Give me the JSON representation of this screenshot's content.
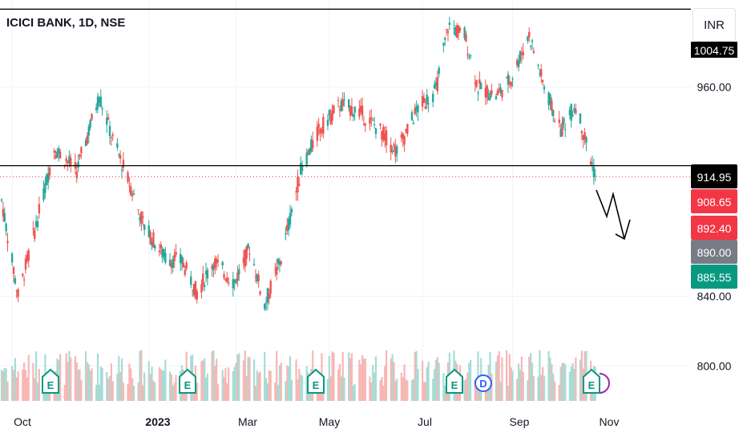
{
  "header": {
    "title": "ICICI BANK, 1D, NSE",
    "currency": "INR"
  },
  "chart_data": {
    "type": "candlestick",
    "ylim": [
      780,
      1010
    ],
    "y_ticks": [
      "1004.75",
      "960.00",
      "914.95",
      "840.00",
      "800.00"
    ],
    "x_ticks": [
      "Oct",
      "2023",
      "Mar",
      "May",
      "Jul",
      "Sep",
      "Nov"
    ],
    "price_labels": [
      {
        "text": "1004.75",
        "kind": "resistance",
        "color": "#000000"
      },
      {
        "text": "914.95",
        "kind": "support",
        "color": "#000000"
      },
      {
        "text": "908.65",
        "kind": "last",
        "color": "#f23645"
      },
      {
        "text": "892.40",
        "kind": "low",
        "color": "#f23645"
      },
      {
        "text": "890.00",
        "kind": "target",
        "color": "#787b86"
      },
      {
        "text": "885.55",
        "kind": "open",
        "color": "#089981"
      }
    ],
    "horizontal_lines": [
      {
        "name": "resistance",
        "value": 1004.75
      },
      {
        "name": "support",
        "value": 914.95
      }
    ],
    "last_price": 908.65,
    "events": [
      "E",
      "E",
      "E",
      "E",
      "D",
      "E"
    ],
    "colors": {
      "up": "#26a69a",
      "down": "#ef5350",
      "vol_up": "#a7dcd5",
      "vol_down": "#f7b7b5"
    },
    "anchors": [
      [
        "2022-09-26",
        895
      ],
      [
        "2022-10-07",
        840
      ],
      [
        "2022-10-21",
        888
      ],
      [
        "2022-10-31",
        925
      ],
      [
        "2022-11-15",
        912
      ],
      [
        "2022-11-30",
        955
      ],
      [
        "2022-12-09",
        930
      ],
      [
        "2022-12-20",
        905
      ],
      [
        "2022-12-30",
        880
      ],
      [
        "2023-01-13",
        862
      ],
      [
        "2023-01-24",
        860
      ],
      [
        "2023-02-03",
        842
      ],
      [
        "2023-02-14",
        860
      ],
      [
        "2023-02-28",
        848
      ],
      [
        "2023-03-10",
        868
      ],
      [
        "2023-03-20",
        835
      ],
      [
        "2023-03-31",
        862
      ],
      [
        "2023-04-13",
        912
      ],
      [
        "2023-04-25",
        935
      ],
      [
        "2023-05-09",
        950
      ],
      [
        "2023-05-22",
        946
      ],
      [
        "2023-06-05",
        935
      ],
      [
        "2023-06-16",
        923
      ],
      [
        "2023-06-30",
        948
      ],
      [
        "2023-07-12",
        958
      ],
      [
        "2023-07-20",
        995
      ],
      [
        "2023-07-31",
        990
      ],
      [
        "2023-08-09",
        960
      ],
      [
        "2023-08-21",
        955
      ],
      [
        "2023-08-31",
        965
      ],
      [
        "2023-09-12",
        990
      ],
      [
        "2023-09-22",
        960
      ],
      [
        "2023-10-03",
        935
      ],
      [
        "2023-10-13",
        950
      ],
      [
        "2023-10-20",
        928
      ],
      [
        "2023-10-26",
        909
      ]
    ]
  }
}
